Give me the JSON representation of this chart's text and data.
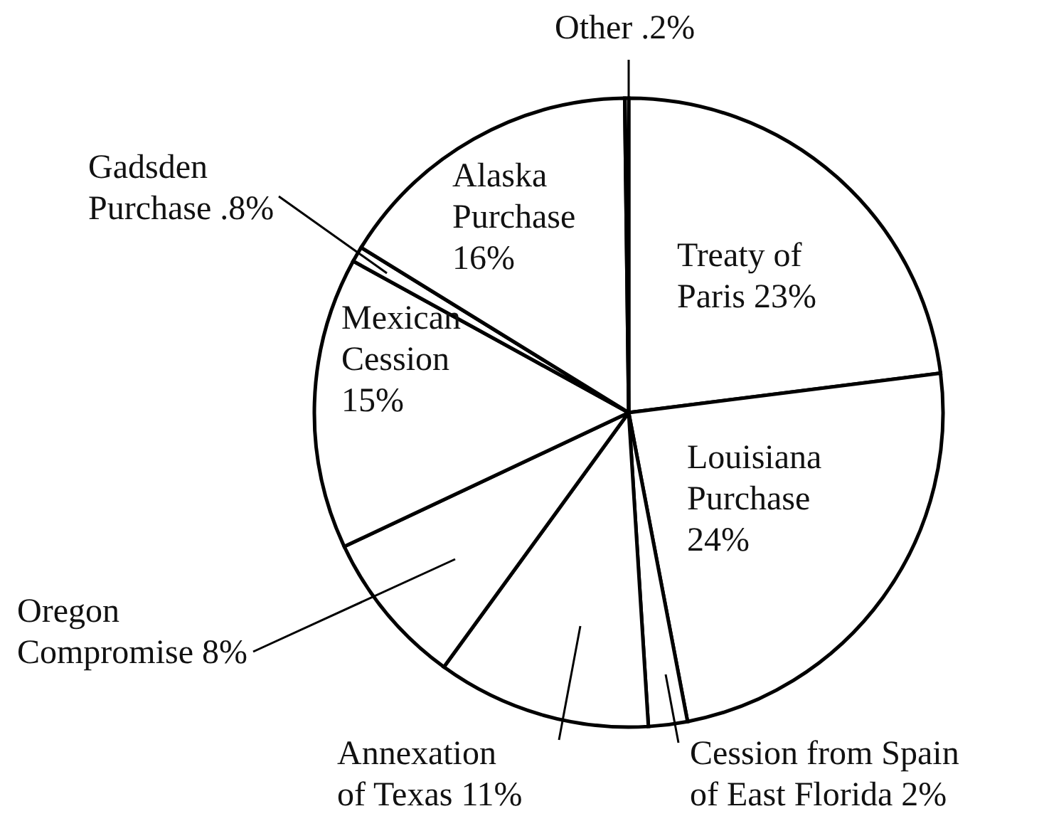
{
  "chart_data": {
    "type": "pie",
    "categories": [
      "Treaty of Paris",
      "Louisiana Purchase",
      "Cession from Spain of East Florida",
      "Annexation of Texas",
      "Oregon Compromise",
      "Mexican Cession",
      "Gadsden Purchase",
      "Alaska Purchase",
      "Other"
    ],
    "values": [
      23,
      24,
      2,
      11,
      8,
      15,
      0.8,
      16,
      0.2
    ],
    "value_labels": [
      "23%",
      "24%",
      "2%",
      "11%",
      "8%",
      "15%",
      ".8%",
      "16%",
      ".2%"
    ],
    "colors": [
      "#ffffff",
      "#ffffff",
      "#ffffff",
      "#ffffff",
      "#ffffff",
      "#ffffff",
      "#ffffff",
      "#ffffff",
      "#ffffff"
    ]
  }
}
